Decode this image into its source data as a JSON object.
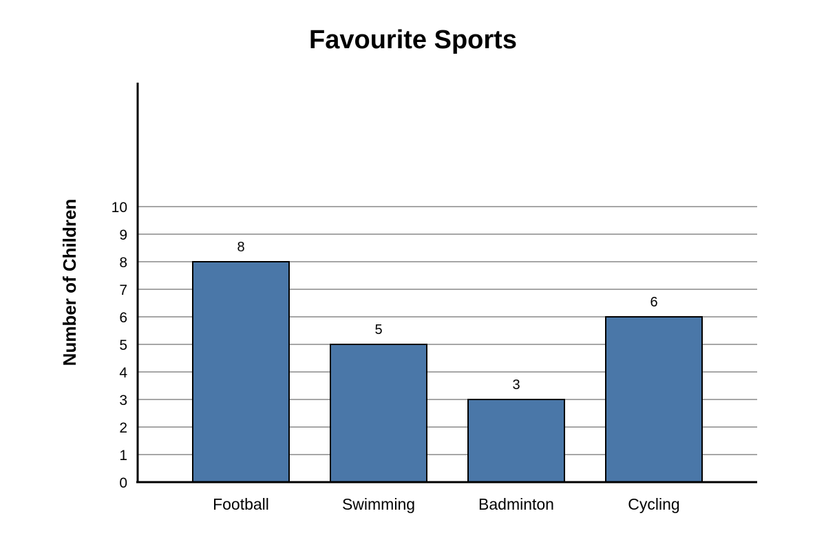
{
  "chart_data": {
    "type": "bar",
    "title": "Favourite Sports",
    "xlabel": "",
    "ylabel": "Number of Children",
    "categories": [
      "Football",
      "Swimming",
      "Badminton",
      "Cycling"
    ],
    "values": [
      8,
      5,
      3,
      6
    ],
    "yticks": [
      "0",
      "1",
      "2",
      "3",
      "4",
      "5",
      "6",
      "7",
      "8",
      "9",
      "10"
    ],
    "ylim": [
      0,
      10
    ],
    "grid": true,
    "data_labels": true,
    "colors": {
      "bar_fill": "#4a77a8",
      "bar_stroke": "#000000",
      "grid": "#888888",
      "axis": "#000000"
    }
  }
}
